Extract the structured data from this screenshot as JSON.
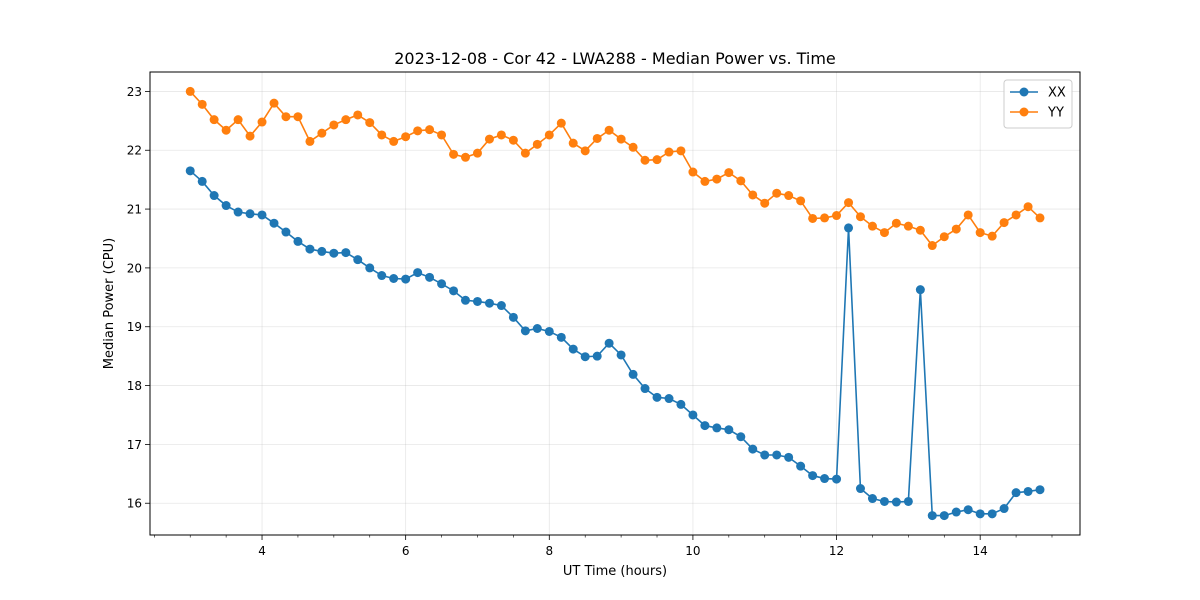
{
  "chart_data": {
    "type": "line",
    "title": "2023-12-08 - Cor 42 - LWA288 - Median Power vs. Time",
    "xlabel": "UT Time (hours)",
    "ylabel": "Median Power (CPU)",
    "xlim": [
      2.44,
      15.39
    ],
    "ylim": [
      15.46,
      23.33
    ],
    "xticks": [
      4,
      6,
      8,
      10,
      12,
      14
    ],
    "yticks": [
      16,
      17,
      18,
      19,
      20,
      21,
      22,
      23
    ],
    "grid": true,
    "legend_position": "top-right",
    "x": [
      3.0,
      3.167,
      3.333,
      3.5,
      3.667,
      3.833,
      4.0,
      4.167,
      4.333,
      4.5,
      4.667,
      4.833,
      5.0,
      5.167,
      5.333,
      5.5,
      5.667,
      5.833,
      6.0,
      6.167,
      6.333,
      6.5,
      6.667,
      6.833,
      7.0,
      7.167,
      7.333,
      7.5,
      7.667,
      7.833,
      8.0,
      8.167,
      8.333,
      8.5,
      8.667,
      8.833,
      9.0,
      9.167,
      9.333,
      9.5,
      9.667,
      9.833,
      10.0,
      10.167,
      10.333,
      10.5,
      10.667,
      10.833,
      11.0,
      11.167,
      11.333,
      11.5,
      11.667,
      11.833,
      12.0,
      12.167,
      12.333,
      12.5,
      12.667,
      12.833,
      13.0,
      13.167,
      13.333,
      13.5,
      13.667,
      13.833,
      14.0,
      14.167,
      14.333,
      14.5,
      14.667,
      14.833
    ],
    "series": [
      {
        "name": "XX",
        "color": "#1f77b4",
        "values": [
          21.65,
          21.47,
          21.23,
          21.06,
          20.95,
          20.92,
          20.9,
          20.76,
          20.61,
          20.45,
          20.32,
          20.28,
          20.25,
          20.26,
          20.14,
          20.0,
          19.87,
          19.82,
          19.81,
          19.92,
          19.84,
          19.73,
          19.61,
          19.45,
          19.43,
          19.4,
          19.36,
          19.16,
          18.93,
          18.97,
          18.92,
          18.82,
          18.62,
          18.49,
          18.5,
          18.72,
          18.52,
          18.19,
          17.95,
          17.8,
          17.78,
          17.68,
          17.5,
          17.32,
          17.28,
          17.25,
          17.13,
          16.92,
          16.82,
          16.82,
          16.78,
          16.63,
          16.47,
          16.42,
          16.41,
          20.68,
          16.25,
          16.08,
          16.03,
          16.02,
          16.03,
          19.63,
          15.79,
          15.79,
          15.85,
          15.89,
          15.82,
          15.82,
          15.91,
          16.18,
          16.2,
          16.23
        ]
      },
      {
        "name": "YY",
        "color": "#ff7f0e",
        "values": [
          23.0,
          22.78,
          22.52,
          22.34,
          22.52,
          22.24,
          22.48,
          22.8,
          22.57,
          22.57,
          22.15,
          22.29,
          22.43,
          22.52,
          22.6,
          22.47,
          22.26,
          22.15,
          22.23,
          22.33,
          22.35,
          22.26,
          21.93,
          21.88,
          21.95,
          22.19,
          22.26,
          22.17,
          21.95,
          22.1,
          22.26,
          22.46,
          22.12,
          21.99,
          22.2,
          22.34,
          22.19,
          22.05,
          21.83,
          21.84,
          21.97,
          21.99,
          21.63,
          21.47,
          21.51,
          21.62,
          21.48,
          21.24,
          21.1,
          21.27,
          21.23,
          21.14,
          20.84,
          20.85,
          20.89,
          21.11,
          20.87,
          20.71,
          20.6,
          20.76,
          20.71,
          20.64,
          20.38,
          20.53,
          20.66,
          20.9,
          20.6,
          20.54,
          20.77,
          20.9,
          21.04,
          20.85
        ]
      }
    ]
  }
}
